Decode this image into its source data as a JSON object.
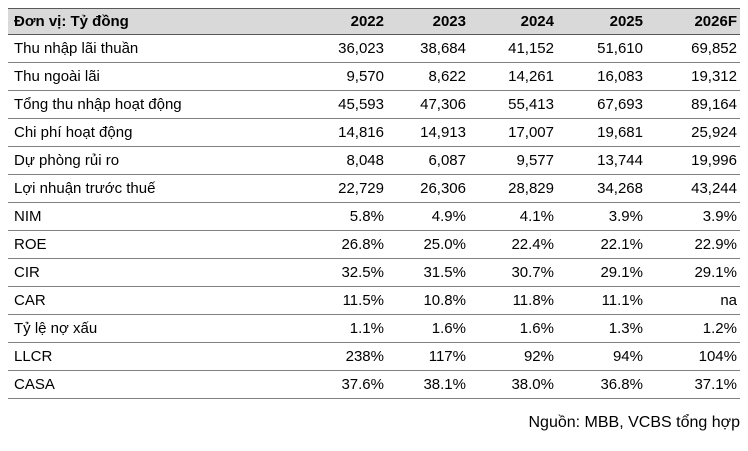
{
  "table": {
    "unit_label": "Đơn vị: Tỷ đồng",
    "years": [
      "2022",
      "2023",
      "2024",
      "2025",
      "2026F"
    ],
    "rows": [
      {
        "label": "Thu nhập lãi thuần",
        "values": [
          "36,023",
          "38,684",
          "41,152",
          "51,610",
          "69,852"
        ]
      },
      {
        "label": "Thu ngoài lãi",
        "values": [
          "9,570",
          "8,622",
          "14,261",
          "16,083",
          "19,312"
        ]
      },
      {
        "label": "Tổng thu nhập hoạt động",
        "values": [
          "45,593",
          "47,306",
          "55,413",
          "67,693",
          "89,164"
        ]
      },
      {
        "label": "Chi phí hoạt động",
        "values": [
          "14,816",
          "14,913",
          "17,007",
          "19,681",
          "25,924"
        ]
      },
      {
        "label": "Dự phòng rủi ro",
        "values": [
          "8,048",
          "6,087",
          "9,577",
          "13,744",
          "19,996"
        ]
      },
      {
        "label": "Lợi nhuận trước thuế",
        "values": [
          "22,729",
          "26,306",
          "28,829",
          "34,268",
          "43,244"
        ]
      },
      {
        "label": "NIM",
        "values": [
          "5.8%",
          "4.9%",
          "4.1%",
          "3.9%",
          "3.9%"
        ]
      },
      {
        "label": "ROE",
        "values": [
          "26.8%",
          "25.0%",
          "22.4%",
          "22.1%",
          "22.9%"
        ]
      },
      {
        "label": "CIR",
        "values": [
          "32.5%",
          "31.5%",
          "30.7%",
          "29.1%",
          "29.1%"
        ]
      },
      {
        "label": "CAR",
        "values": [
          "11.5%",
          "10.8%",
          "11.8%",
          "11.1%",
          "na"
        ]
      },
      {
        "label": "Tỷ lệ nợ xấu",
        "values": [
          "1.1%",
          "1.6%",
          "1.6%",
          "1.3%",
          "1.2%"
        ]
      },
      {
        "label": "LLCR",
        "values": [
          "238%",
          "117%",
          "92%",
          "94%",
          "104%"
        ]
      },
      {
        "label": "CASA",
        "values": [
          "37.6%",
          "38.1%",
          "38.0%",
          "36.8%",
          "37.1%"
        ]
      }
    ]
  },
  "footer": {
    "source_text": "Nguồn: MBB, VCBS tổng hợp"
  },
  "colors": {
    "header_bg": "#d9d9d9",
    "header_border": "#595959",
    "row_border": "#808080",
    "text": "#000000"
  }
}
